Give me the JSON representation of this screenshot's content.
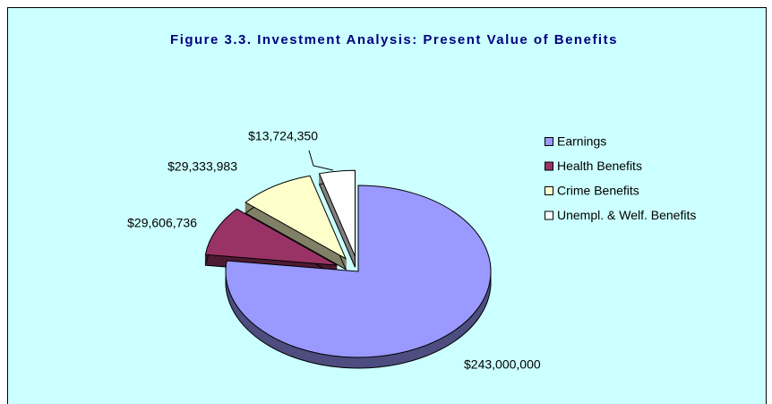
{
  "chart_data": {
    "type": "pie",
    "title": "Figure 3.3. Investment Analysis: Present Value of Benefits",
    "categories": [
      "Earnings",
      "Health Benefits",
      "Crime Benefits",
      "Unempl. & Welf. Benefits"
    ],
    "values": [
      243000000,
      29606736,
      29333983,
      13724350
    ],
    "value_labels": [
      "$243,000,000",
      "$29,606,736",
      "$29,333,983",
      "$13,724,350"
    ],
    "colors": [
      "#9999ff",
      "#993366",
      "#ffffcc",
      "#ffffff"
    ],
    "legend": "right"
  }
}
